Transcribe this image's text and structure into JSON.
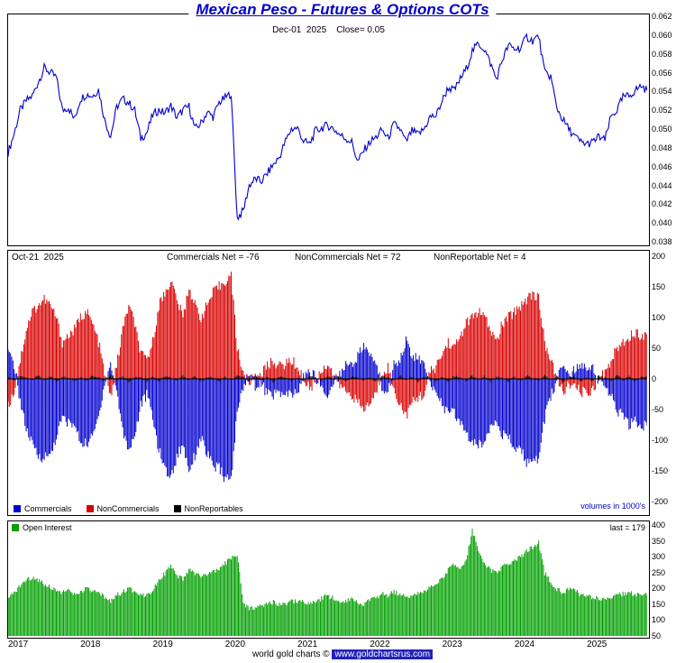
{
  "title": "Mexican Peso - Futures & Options COTs",
  "price_panel": {
    "label": "Dec-01  2025    Close= 0.05",
    "line_color": "#0000cd",
    "y_ticks": [
      "0.062",
      "0.060",
      "0.058",
      "0.056",
      "0.054",
      "0.052",
      "0.050",
      "0.048",
      "0.046",
      "0.044",
      "0.042",
      "0.040",
      "0.038"
    ]
  },
  "cot_panel": {
    "date_label": "Oct-21  2025",
    "commercials_label": "Commercials Net = -76",
    "noncommercials_label": "NonCommercials Net = 72",
    "nonreportable_label": "NonReportable Net = 4",
    "volumes_note": "volumes in 1000's",
    "y_ticks": [
      200,
      150,
      100,
      50,
      0,
      -50,
      -100,
      -150,
      -200
    ],
    "legend": [
      {
        "label": "Commercials",
        "color": "#0000cd"
      },
      {
        "label": "NonCommercials",
        "color": "#d80000"
      },
      {
        "label": "NonReportables",
        "color": "#000000"
      }
    ]
  },
  "oi_panel": {
    "legend_label": "Open Interest",
    "last_label": "last = 179",
    "color": "#00a000",
    "y_ticks": [
      400,
      350,
      300,
      250,
      200,
      150,
      100,
      50
    ]
  },
  "x_axis": {
    "years": [
      "2017",
      "2018",
      "2019",
      "2020",
      "2021",
      "2022",
      "2023",
      "2024",
      "2025"
    ]
  },
  "footer": {
    "prefix": "world gold charts © ",
    "site": "www.goldchartsrus.com"
  },
  "chart_data": [
    {
      "type": "line",
      "title": "Mexican Peso futures price",
      "x_range": [
        "2017-01",
        "2025-11"
      ],
      "frequency": "monthly",
      "ylim": [
        0.038,
        0.062
      ],
      "grid": false,
      "values": [
        0.0475,
        0.0495,
        0.052,
        0.053,
        0.0535,
        0.055,
        0.0565,
        0.056,
        0.0555,
        0.052,
        0.0523,
        0.051,
        0.0532,
        0.0537,
        0.0535,
        0.0542,
        0.051,
        0.0492,
        0.0523,
        0.0532,
        0.0528,
        0.052,
        0.049,
        0.0496,
        0.0515,
        0.052,
        0.0517,
        0.0525,
        0.0512,
        0.052,
        0.0524,
        0.05,
        0.0506,
        0.0518,
        0.0513,
        0.0528,
        0.0533,
        0.0538,
        0.0405,
        0.0413,
        0.044,
        0.0447,
        0.0444,
        0.0453,
        0.0462,
        0.047,
        0.0487,
        0.05,
        0.0501,
        0.0487,
        0.0484,
        0.0498,
        0.0501,
        0.0504,
        0.05,
        0.0494,
        0.049,
        0.0486,
        0.0465,
        0.0477,
        0.0486,
        0.0491,
        0.0499,
        0.049,
        0.0505,
        0.05,
        0.0486,
        0.0498,
        0.0494,
        0.05,
        0.0513,
        0.0514,
        0.053,
        0.0544,
        0.0541,
        0.0553,
        0.0564,
        0.0583,
        0.0591,
        0.0585,
        0.057,
        0.0553,
        0.0574,
        0.0589,
        0.0585,
        0.0586,
        0.0598,
        0.0594,
        0.0599,
        0.056,
        0.0556,
        0.0523,
        0.051,
        0.05,
        0.0492,
        0.0486,
        0.0484,
        0.0486,
        0.0492,
        0.0488,
        0.0513,
        0.052,
        0.0534,
        0.0535,
        0.0541,
        0.0546,
        0.0541
      ]
    },
    {
      "type": "bar",
      "title": "COT net positions (contracts in 1000's)",
      "x_range": [
        "2017-01",
        "2025-11"
      ],
      "frequency": "monthly",
      "ylim": [
        -200,
        200
      ],
      "legend_position": "bottom-left",
      "series": [
        {
          "name": "Commercials",
          "color": "#0000cd",
          "values": [
            42,
            24,
            -35,
            -82,
            -107,
            -126,
            -128,
            -124,
            -95,
            -63,
            -72,
            -76,
            -103,
            -106,
            -95,
            -62,
            -7,
            24,
            -18,
            -84,
            -115,
            -93,
            -42,
            -26,
            -63,
            -116,
            -145,
            -162,
            -127,
            -106,
            -148,
            -124,
            -95,
            -123,
            -142,
            -146,
            -163,
            -164,
            -55,
            -12,
            8,
            -11,
            -8,
            -24,
            -25,
            -23,
            -27,
            -26,
            -23,
            4,
            10,
            3,
            -12,
            -31,
            -3,
            6,
            25,
            22,
            38,
            54,
            37,
            29,
            -15,
            -22,
            23,
            34,
            62,
            36,
            35,
            22,
            -12,
            -16,
            -43,
            -56,
            -55,
            -72,
            -87,
            -106,
            -108,
            -104,
            -75,
            -63,
            -92,
            -96,
            -113,
            -116,
            -135,
            -142,
            -127,
            -66,
            -28,
            -4,
            25,
            7,
            13,
            24,
            22,
            19,
            -5,
            -12,
            -27,
            -56,
            -58,
            -74,
            -70,
            -75,
            -76
          ]
        },
        {
          "name": "NonCommercials",
          "color": "#d80000",
          "values": [
            -45,
            -20,
            30,
            80,
            110,
            120,
            130,
            120,
            100,
            60,
            70,
            80,
            100,
            110,
            90,
            60,
            10,
            -30,
            20,
            80,
            120,
            90,
            40,
            30,
            60,
            120,
            140,
            160,
            130,
            100,
            150,
            120,
            100,
            120,
            140,
            150,
            160,
            168,
            50,
            10,
            -5,
            5,
            10,
            20,
            30,
            20,
            25,
            30,
            20,
            0,
            -15,
            -5,
            15,
            25,
            5,
            -10,
            -20,
            -25,
            -40,
            -50,
            -40,
            -25,
            10,
            20,
            -20,
            -40,
            -60,
            -40,
            -30,
            -25,
            10,
            20,
            40,
            60,
            50,
            70,
            90,
            100,
            110,
            100,
            80,
            60,
            90,
            100,
            110,
            120,
            130,
            140,
            130,
            60,
            30,
            0,
            -20,
            -10,
            -15,
            -20,
            -25,
            -15,
            0,
            10,
            30,
            50,
            60,
            70,
            75,
            72,
            72
          ]
        },
        {
          "name": "NonReportables",
          "color": "#000000",
          "values": [
            3,
            -4,
            5,
            2,
            -3,
            6,
            -2,
            4,
            -5,
            3,
            2,
            -4,
            3,
            -4,
            5,
            2,
            -3,
            6,
            -2,
            4,
            -5,
            3,
            2,
            -4,
            3,
            -4,
            5,
            2,
            -3,
            6,
            -2,
            4,
            -5,
            3,
            2,
            -4,
            3,
            -4,
            5,
            2,
            -3,
            6,
            -2,
            4,
            -5,
            3,
            2,
            -4,
            3,
            -4,
            5,
            2,
            -3,
            6,
            -2,
            4,
            -5,
            3,
            2,
            -4,
            3,
            -4,
            5,
            2,
            -3,
            6,
            -2,
            4,
            -5,
            3,
            2,
            -4,
            3,
            -4,
            5,
            2,
            -3,
            6,
            -2,
            4,
            -5,
            3,
            2,
            -4,
            3,
            -4,
            5,
            2,
            -3,
            6,
            -2,
            4,
            -5,
            3,
            2,
            -4,
            3,
            -4,
            5,
            2,
            -3,
            6,
            -2,
            4,
            -5,
            3,
            4
          ]
        }
      ]
    },
    {
      "type": "bar",
      "title": "Open Interest (contracts in 1000's)",
      "x_range": [
        "2017-01",
        "2025-11"
      ],
      "frequency": "monthly",
      "ylim": [
        50,
        400
      ],
      "last_value": 179,
      "values": [
        165,
        185,
        210,
        225,
        235,
        228,
        215,
        205,
        195,
        188,
        192,
        180,
        188,
        198,
        192,
        183,
        172,
        162,
        178,
        188,
        198,
        192,
        182,
        178,
        198,
        228,
        248,
        268,
        238,
        228,
        258,
        248,
        238,
        242,
        252,
        258,
        278,
        298,
        308,
        148,
        138,
        142,
        148,
        152,
        158,
        148,
        152,
        158,
        162,
        158,
        148,
        158,
        168,
        178,
        168,
        158,
        162,
        168,
        158,
        148,
        162,
        172,
        182,
        178,
        188,
        182,
        172,
        178,
        182,
        188,
        208,
        218,
        228,
        258,
        278,
        268,
        288,
        385,
        318,
        278,
        258,
        248,
        268,
        278,
        288,
        298,
        318,
        328,
        345,
        248,
        218,
        198,
        188,
        198,
        192,
        182,
        178,
        172,
        168,
        162,
        172,
        178,
        182,
        188,
        178,
        179,
        179
      ]
    }
  ]
}
